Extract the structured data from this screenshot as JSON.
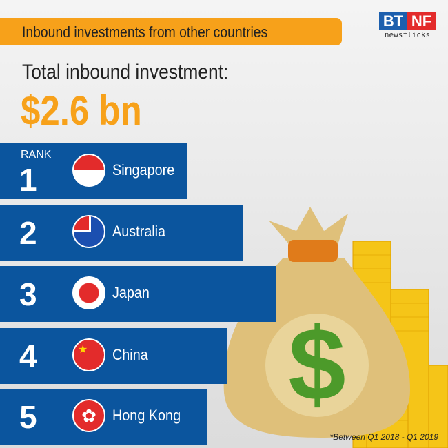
{
  "header": {
    "title": "Inbound investments from other countries"
  },
  "logo": {
    "left": "BT",
    "right": "NF",
    "sub": "newsflicks"
  },
  "summary": {
    "label": "Total inbound investment:",
    "value": "$2.6 bn"
  },
  "ranking": {
    "rank_label": "RANK",
    "items": [
      {
        "rank": "1",
        "country": "Singapore"
      },
      {
        "rank": "2",
        "country": "Australia"
      },
      {
        "rank": "3",
        "country": "Japan"
      },
      {
        "rank": "4",
        "country": "China"
      },
      {
        "rank": "5",
        "country": "Hong Kong"
      }
    ]
  },
  "illustration": {
    "symbol": "$"
  },
  "footnote": "*Between Q1 2018 - Q1 2019",
  "colors": {
    "orange": "#f7a11a",
    "blue": "#0b559e"
  }
}
